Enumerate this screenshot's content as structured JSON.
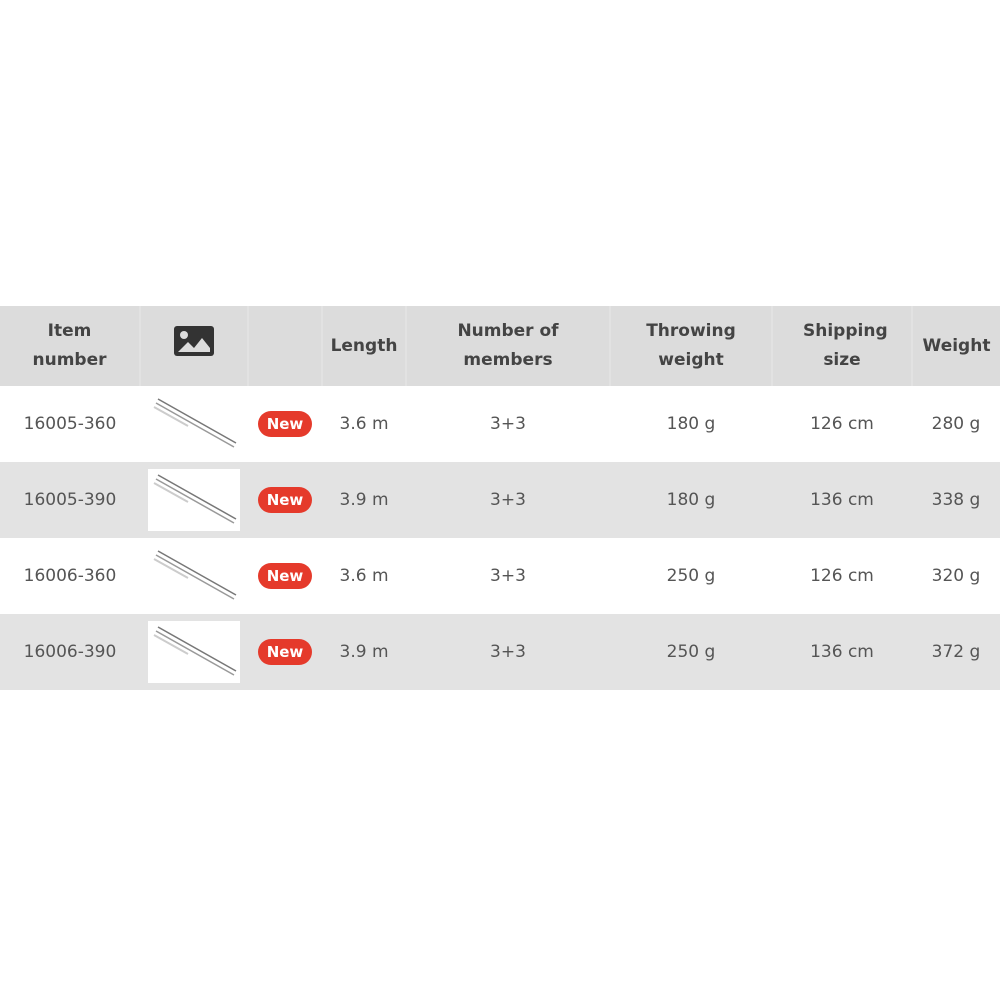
{
  "table": {
    "headers": {
      "item": "Item number",
      "image_icon": "image-icon",
      "length": "Length",
      "members": "Number of members",
      "throwing": "Throwing weight",
      "shipping": "Shipping size",
      "weight": "Weight"
    },
    "badge_color": "#e53a2b",
    "rows": [
      {
        "item": "16005-360",
        "badge": "New",
        "length": "3.6 m",
        "members": "3+3",
        "throwing": "180 g",
        "shipping": "126 cm",
        "weight": "280 g"
      },
      {
        "item": "16005-390",
        "badge": "New",
        "length": "3.9 m",
        "members": "3+3",
        "throwing": "180 g",
        "shipping": "136 cm",
        "weight": "338 g"
      },
      {
        "item": "16006-360",
        "badge": "New",
        "length": "3.6 m",
        "members": "3+3",
        "throwing": "250 g",
        "shipping": "126 cm",
        "weight": "320 g"
      },
      {
        "item": "16006-390",
        "badge": "New",
        "length": "3.9 m",
        "members": "3+3",
        "throwing": "250 g",
        "shipping": "136 cm",
        "weight": "372 g"
      }
    ]
  }
}
